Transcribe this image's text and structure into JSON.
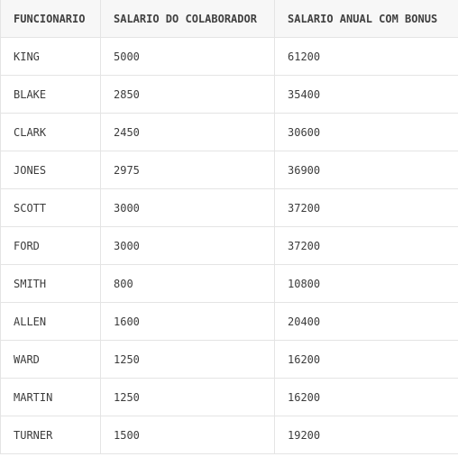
{
  "columns": [
    "FUNCIONARIO",
    "SALARIO DO COLABORADOR",
    "SALARIO ANUAL COM BONUS"
  ],
  "rows": [
    [
      "KING",
      "5000",
      "61200"
    ],
    [
      "BLAKE",
      "2850",
      "35400"
    ],
    [
      "CLARK",
      "2450",
      "30600"
    ],
    [
      "JONES",
      "2975",
      "36900"
    ],
    [
      "SCOTT",
      "3000",
      "37200"
    ],
    [
      "FORD",
      "3000",
      "37200"
    ],
    [
      "SMITH",
      "800",
      "10800"
    ],
    [
      "ALLEN",
      "1600",
      "20400"
    ],
    [
      "WARD",
      "1250",
      "16200"
    ],
    [
      "MARTIN",
      "1250",
      "16200"
    ],
    [
      "TURNER",
      "1500",
      "19200"
    ]
  ]
}
